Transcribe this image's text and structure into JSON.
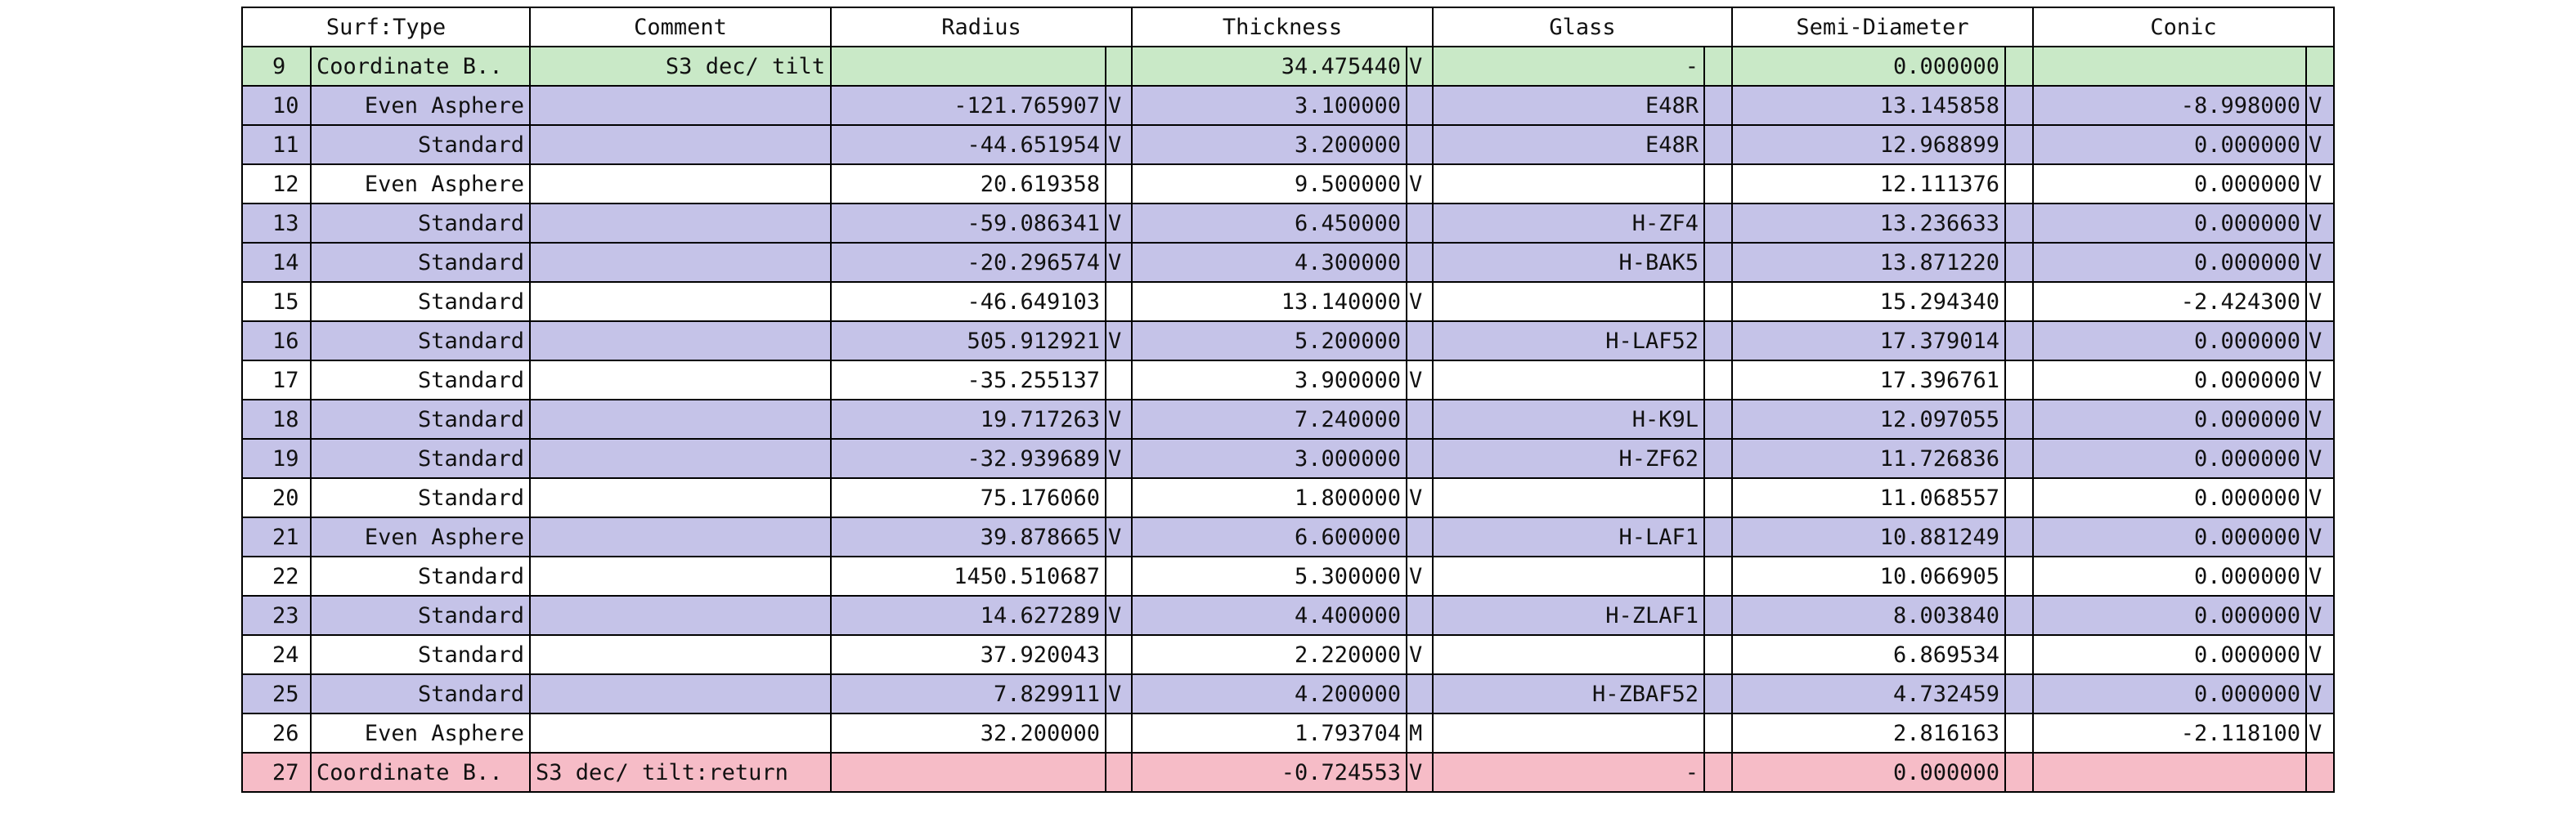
{
  "headers": [
    "Surf:Type",
    "Comment",
    "Radius",
    "Thickness",
    "Glass",
    "Semi-Diameter",
    "Conic"
  ],
  "row_colors": {
    "coordinate_break": "#c9e9c7",
    "glass_surface": "#c5c3e8",
    "air_surface": "#ffffff",
    "return_surface": "#f6bcc7"
  },
  "rows": [
    {
      "kind": "coord",
      "num": "9",
      "type": "Coordinate B..",
      "comment": "S3 dec/ tilt",
      "radius": "",
      "rflag": "",
      "thickness": "34.475440",
      "tflag": "V",
      "glass": "-",
      "gflag": "",
      "semi": "0.000000",
      "sflag": "",
      "conic": "",
      "cflag": ""
    },
    {
      "kind": "glass",
      "num": "10",
      "type": "Even Asphere",
      "comment": "",
      "radius": "-121.765907",
      "rflag": "V",
      "thickness": "3.100000",
      "tflag": "",
      "glass": "E48R",
      "gflag": "",
      "semi": "13.145858",
      "sflag": "",
      "conic": "-8.998000",
      "cflag": "V"
    },
    {
      "kind": "glass",
      "num": "11",
      "type": "Standard",
      "comment": "",
      "radius": "-44.651954",
      "rflag": "V",
      "thickness": "3.200000",
      "tflag": "",
      "glass": "E48R",
      "gflag": "",
      "semi": "12.968899",
      "sflag": "",
      "conic": "0.000000",
      "cflag": "V"
    },
    {
      "kind": "air",
      "num": "12",
      "type": "Even Asphere",
      "comment": "",
      "radius": "20.619358",
      "rflag": "",
      "thickness": "9.500000",
      "tflag": "V",
      "glass": "",
      "gflag": "",
      "semi": "12.111376",
      "sflag": "",
      "conic": "0.000000",
      "cflag": "V"
    },
    {
      "kind": "glass",
      "num": "13",
      "type": "Standard",
      "comment": "",
      "radius": "-59.086341",
      "rflag": "V",
      "thickness": "6.450000",
      "tflag": "",
      "glass": "H-ZF4",
      "gflag": "",
      "semi": "13.236633",
      "sflag": "",
      "conic": "0.000000",
      "cflag": "V"
    },
    {
      "kind": "glass",
      "num": "14",
      "type": "Standard",
      "comment": "",
      "radius": "-20.296574",
      "rflag": "V",
      "thickness": "4.300000",
      "tflag": "",
      "glass": "H-BAK5",
      "gflag": "",
      "semi": "13.871220",
      "sflag": "",
      "conic": "0.000000",
      "cflag": "V"
    },
    {
      "kind": "air",
      "num": "15",
      "type": "Standard",
      "comment": "",
      "radius": "-46.649103",
      "rflag": "",
      "thickness": "13.140000",
      "tflag": "V",
      "glass": "",
      "gflag": "",
      "semi": "15.294340",
      "sflag": "",
      "conic": "-2.424300",
      "cflag": "V"
    },
    {
      "kind": "glass",
      "num": "16",
      "type": "Standard",
      "comment": "",
      "radius": "505.912921",
      "rflag": "V",
      "thickness": "5.200000",
      "tflag": "",
      "glass": "H-LAF52",
      "gflag": "",
      "semi": "17.379014",
      "sflag": "",
      "conic": "0.000000",
      "cflag": "V"
    },
    {
      "kind": "air",
      "num": "17",
      "type": "Standard",
      "comment": "",
      "radius": "-35.255137",
      "rflag": "",
      "thickness": "3.900000",
      "tflag": "V",
      "glass": "",
      "gflag": "",
      "semi": "17.396761",
      "sflag": "",
      "conic": "0.000000",
      "cflag": "V"
    },
    {
      "kind": "glass",
      "num": "18",
      "type": "Standard",
      "comment": "",
      "radius": "19.717263",
      "rflag": "V",
      "thickness": "7.240000",
      "tflag": "",
      "glass": "H-K9L",
      "gflag": "",
      "semi": "12.097055",
      "sflag": "",
      "conic": "0.000000",
      "cflag": "V"
    },
    {
      "kind": "glass",
      "num": "19",
      "type": "Standard",
      "comment": "",
      "radius": "-32.939689",
      "rflag": "V",
      "thickness": "3.000000",
      "tflag": "",
      "glass": "H-ZF62",
      "gflag": "",
      "semi": "11.726836",
      "sflag": "",
      "conic": "0.000000",
      "cflag": "V"
    },
    {
      "kind": "air",
      "num": "20",
      "type": "Standard",
      "comment": "",
      "radius": "75.176060",
      "rflag": "",
      "thickness": "1.800000",
      "tflag": "V",
      "glass": "",
      "gflag": "",
      "semi": "11.068557",
      "sflag": "",
      "conic": "0.000000",
      "cflag": "V"
    },
    {
      "kind": "glass",
      "num": "21",
      "type": "Even Asphere",
      "comment": "",
      "radius": "39.878665",
      "rflag": "V",
      "thickness": "6.600000",
      "tflag": "",
      "glass": "H-LAF1",
      "gflag": "",
      "semi": "10.881249",
      "sflag": "",
      "conic": "0.000000",
      "cflag": "V"
    },
    {
      "kind": "air",
      "num": "22",
      "type": "Standard",
      "comment": "",
      "radius": "1450.510687",
      "rflag": "",
      "thickness": "5.300000",
      "tflag": "V",
      "glass": "",
      "gflag": "",
      "semi": "10.066905",
      "sflag": "",
      "conic": "0.000000",
      "cflag": "V"
    },
    {
      "kind": "glass",
      "num": "23",
      "type": "Standard",
      "comment": "",
      "radius": "14.627289",
      "rflag": "V",
      "thickness": "4.400000",
      "tflag": "",
      "glass": "H-ZLAF1",
      "gflag": "",
      "semi": "8.003840",
      "sflag": "",
      "conic": "0.000000",
      "cflag": "V"
    },
    {
      "kind": "air",
      "num": "24",
      "type": "Standard",
      "comment": "",
      "radius": "37.920043",
      "rflag": "",
      "thickness": "2.220000",
      "tflag": "V",
      "glass": "",
      "gflag": "",
      "semi": "6.869534",
      "sflag": "",
      "conic": "0.000000",
      "cflag": "V"
    },
    {
      "kind": "glass",
      "num": "25",
      "type": "Standard",
      "comment": "",
      "radius": "7.829911",
      "rflag": "V",
      "thickness": "4.200000",
      "tflag": "",
      "glass": "H-ZBAF52",
      "gflag": "",
      "semi": "4.732459",
      "sflag": "",
      "conic": "0.000000",
      "cflag": "V"
    },
    {
      "kind": "air",
      "num": "26",
      "type": "Even Asphere",
      "comment": "",
      "radius": "32.200000",
      "rflag": "",
      "thickness": "1.793704",
      "tflag": "M",
      "glass": "",
      "gflag": "",
      "semi": "2.816163",
      "sflag": "",
      "conic": "-2.118100",
      "cflag": "V"
    },
    {
      "kind": "ret",
      "num": "27",
      "type": "Coordinate B..",
      "comment": "S3 dec/ tilt:return",
      "radius": "",
      "rflag": "",
      "thickness": "-0.724553",
      "tflag": "V",
      "glass": "-",
      "gflag": "",
      "semi": "0.000000",
      "sflag": "",
      "conic": "",
      "cflag": ""
    }
  ]
}
